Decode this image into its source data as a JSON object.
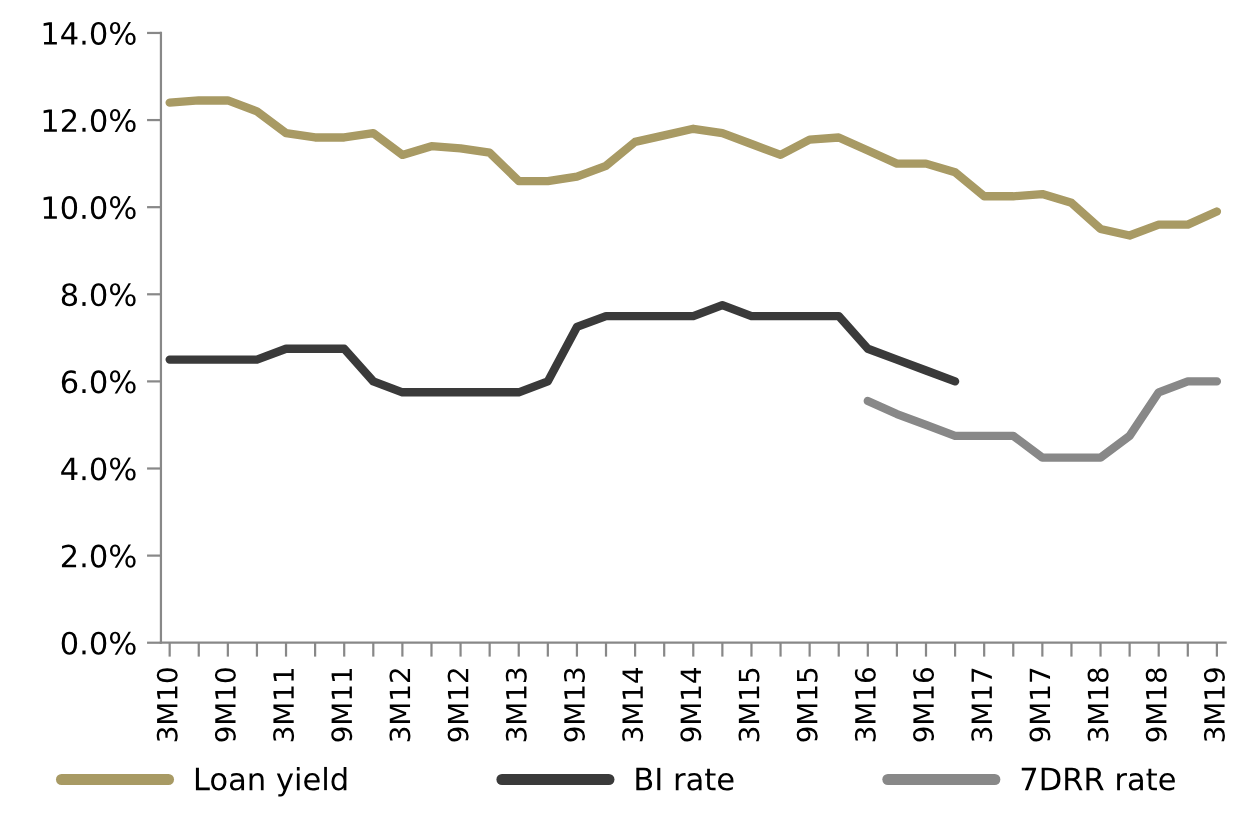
{
  "chart_data": {
    "type": "line",
    "categories": [
      "3M10",
      null,
      "9M10",
      null,
      "3M11",
      null,
      "9M11",
      null,
      "3M12",
      null,
      "9M12",
      null,
      "3M13",
      null,
      "9M13",
      null,
      "3M14",
      null,
      "9M14",
      null,
      "3M15",
      null,
      "9M15",
      null,
      "3M16",
      null,
      "9M16",
      null,
      "3M17",
      null,
      "9M17",
      null,
      "3M18",
      null,
      "9M18",
      null,
      "3M19"
    ],
    "series": [
      {
        "name": "Loan yield",
        "color": "#a89a64",
        "values": [
          12.4,
          12.45,
          12.45,
          12.2,
          11.7,
          11.6,
          11.6,
          11.7,
          11.2,
          11.4,
          11.35,
          11.25,
          10.6,
          10.6,
          10.7,
          10.95,
          11.5,
          11.65,
          11.8,
          11.7,
          11.45,
          11.2,
          11.55,
          11.6,
          11.3,
          11.0,
          11.0,
          10.8,
          10.25,
          10.25,
          10.3,
          10.1,
          9.5,
          9.35,
          9.6,
          9.6,
          9.9
        ]
      },
      {
        "name": "BI rate",
        "color": "#3a3a3a",
        "values": [
          6.5,
          6.5,
          6.5,
          6.5,
          6.75,
          6.75,
          6.75,
          6.0,
          5.75,
          5.75,
          5.75,
          5.75,
          5.75,
          6.0,
          7.25,
          7.5,
          7.5,
          7.5,
          7.5,
          7.75,
          7.5,
          7.5,
          7.5,
          7.5,
          6.75,
          6.5,
          6.25,
          6.0,
          null,
          null,
          null,
          null,
          null,
          null,
          null,
          null,
          null
        ]
      },
      {
        "name": "7DRR rate",
        "color": "#888888",
        "values": [
          null,
          null,
          null,
          null,
          null,
          null,
          null,
          null,
          null,
          null,
          null,
          null,
          null,
          null,
          null,
          null,
          null,
          null,
          null,
          null,
          null,
          null,
          null,
          null,
          5.55,
          5.25,
          5.0,
          4.75,
          4.75,
          4.75,
          4.25,
          4.25,
          4.25,
          4.75,
          5.75,
          6.0,
          6.0
        ]
      }
    ],
    "ylim": [
      0,
      14
    ],
    "yticks": [
      {
        "value": 0,
        "label": "0.0%"
      },
      {
        "value": 2,
        "label": "2.0%"
      },
      {
        "value": 4,
        "label": "4.0%"
      },
      {
        "value": 6,
        "label": "6.0%"
      },
      {
        "value": 8,
        "label": "8.0%"
      },
      {
        "value": 10,
        "label": "10.0%"
      },
      {
        "value": 12,
        "label": "12.0%"
      },
      {
        "value": 14,
        "label": "14.0%"
      }
    ],
    "grid": false,
    "legend": "bottom",
    "marker": "none",
    "line_style": "solid"
  }
}
